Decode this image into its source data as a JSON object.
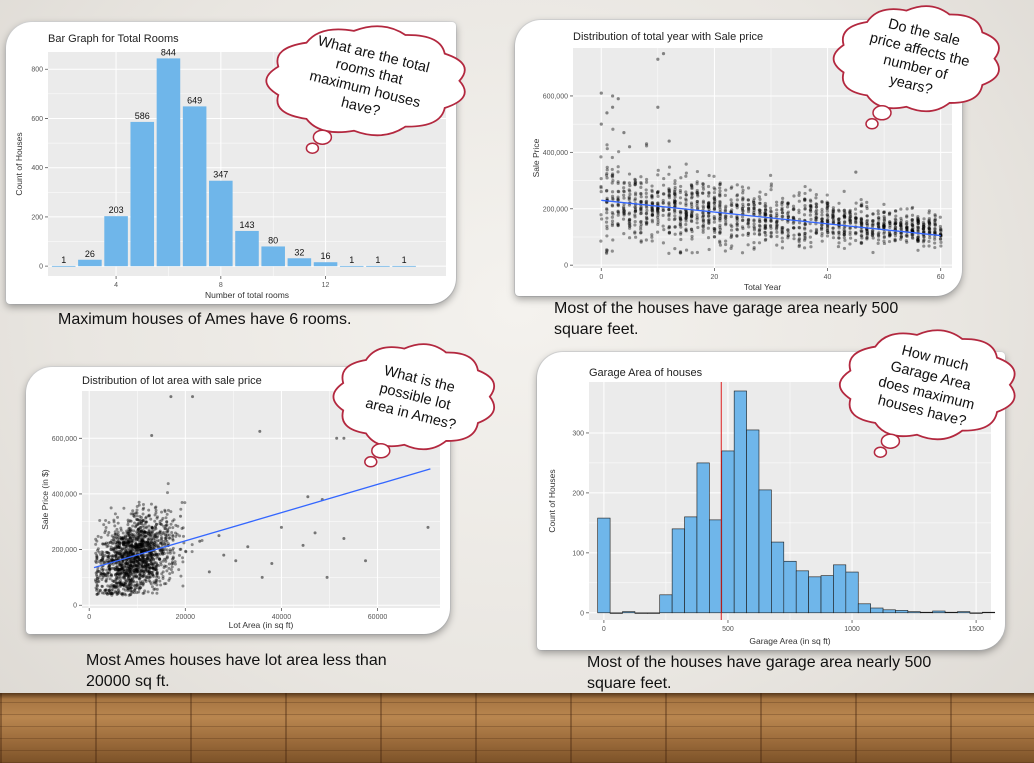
{
  "colors": {
    "bar_fill": "#6fb6ea",
    "bar_stroke": "#1a1a1a",
    "panel_bg": "#ebebeb",
    "grid": "#ffffff",
    "fit_line": "#3366ff",
    "mean_line": "#e02020",
    "cloud_border": "#b3283f"
  },
  "captions": {
    "rooms": "Maximum houses of Ames have 6 rooms.",
    "year": "Most of the houses have garage area nearly 500 square feet.",
    "lot": "Most Ames houses have lot area less than 20000 sq ft.",
    "garage": "Most of the houses have garage area nearly 500 square feet."
  },
  "clouds": {
    "rooms": [
      "What are the total",
      "rooms that",
      "maximum houses",
      "have?"
    ],
    "year": [
      "Do the sale",
      "price affects the",
      "number of",
      "years?"
    ],
    "lot": [
      "What is the",
      "possible lot",
      "area in Ames?"
    ],
    "garage": [
      "How much",
      "Garage Area",
      "does maximum",
      "houses have?"
    ]
  },
  "chart_data": [
    {
      "id": "rooms",
      "type": "bar",
      "title": "Bar Graph for Total Rooms",
      "xlabel": "Number of total rooms",
      "ylabel": "Count of Houses",
      "x": [
        2,
        3,
        4,
        5,
        6,
        7,
        8,
        9,
        10,
        11,
        12,
        13,
        14,
        15
      ],
      "values": [
        1,
        26,
        203,
        586,
        844,
        649,
        347,
        143,
        80,
        32,
        16,
        1,
        1,
        1
      ],
      "xlim": [
        1.4,
        16.6
      ],
      "ylim": [
        -40,
        870
      ],
      "xticks": [
        4,
        8,
        12
      ],
      "xtick_labels": [
        "4",
        "8",
        "12"
      ],
      "yticks": [
        0,
        200,
        400,
        600,
        800
      ],
      "ytick_labels": [
        "0",
        "200",
        "400",
        "600",
        "800"
      ]
    },
    {
      "id": "year",
      "type": "scatter",
      "title": "Distribution of total year with Sale price",
      "xlabel": "Total Year",
      "ylabel": "Sale Price",
      "xlim": [
        -5,
        62
      ],
      "ylim": [
        -10000,
        770000
      ],
      "xticks": [
        0,
        20,
        40,
        60
      ],
      "xtick_labels": [
        "0",
        "20",
        "40",
        "60"
      ],
      "yticks": [
        0,
        200000,
        400000,
        600000
      ],
      "ytick_labels": [
        "0",
        "200,000",
        "400,000",
        "600,000"
      ],
      "trend_line": {
        "x": [
          0,
          60
        ],
        "y": [
          230000,
          105000
        ]
      },
      "point_profile": {
        "x_range": [
          0,
          60
        ],
        "center_y": [
          225000,
          120000
        ],
        "spread": [
          70000,
          25000
        ],
        "count": 1400
      },
      "outliers": [
        [
          11,
          750000
        ],
        [
          10,
          730000
        ],
        [
          0,
          610000
        ],
        [
          3,
          590000
        ],
        [
          2,
          560000
        ],
        [
          1,
          540000
        ],
        [
          0,
          500000
        ],
        [
          10,
          560000
        ],
        [
          12,
          440000
        ],
        [
          5,
          420000
        ],
        [
          8,
          430000
        ],
        [
          45,
          330000
        ],
        [
          2,
          600000
        ],
        [
          4,
          470000
        ]
      ]
    },
    {
      "id": "lot",
      "type": "scatter",
      "title": "Distribution of lot area with sale price",
      "xlabel": "Lot Area (in sq ft)",
      "ylabel": "Sale Price (in $)",
      "xlim": [
        -1500,
        73000
      ],
      "ylim": [
        -10000,
        770000
      ],
      "xticks": [
        0,
        20000,
        40000,
        60000
      ],
      "xtick_labels": [
        "0",
        "20000",
        "40000",
        "60000"
      ],
      "yticks": [
        0,
        200000,
        400000,
        600000
      ],
      "ytick_labels": [
        "0",
        "200,000",
        "400,000",
        "600,000"
      ],
      "trend_line": {
        "x": [
          1000,
          71000
        ],
        "y": [
          135000,
          490000
        ]
      },
      "point_profile": {
        "x_center": 9500,
        "x_spread": 4000,
        "y_center": 175000,
        "y_spread": 70000,
        "count": 1500
      },
      "outliers": [
        [
          17000,
          750000
        ],
        [
          21500,
          750000
        ],
        [
          13000,
          610000
        ],
        [
          35500,
          625000
        ],
        [
          51500,
          600000
        ],
        [
          53000,
          600000
        ],
        [
          70500,
          280000
        ],
        [
          57500,
          160000
        ],
        [
          44500,
          215000
        ],
        [
          47000,
          260000
        ],
        [
          40000,
          280000
        ],
        [
          48500,
          380000
        ],
        [
          45500,
          390000
        ],
        [
          23000,
          230000
        ],
        [
          28000,
          180000
        ],
        [
          30500,
          160000
        ],
        [
          19000,
          320000
        ],
        [
          25000,
          120000
        ],
        [
          33000,
          210000
        ],
        [
          38000,
          150000
        ],
        [
          27000,
          250000
        ],
        [
          53000,
          240000
        ],
        [
          49500,
          100000
        ],
        [
          36000,
          100000
        ]
      ]
    },
    {
      "id": "garage",
      "type": "bar",
      "title": "Garage Area of houses",
      "xlabel": "Garage Area (in sq ft)",
      "ylabel": "Count of Houses",
      "bin_start": -25,
      "bin_width": 50,
      "values": [
        158,
        0,
        2,
        0,
        0,
        30,
        140,
        160,
        250,
        155,
        270,
        370,
        305,
        205,
        118,
        86,
        70,
        60,
        62,
        80,
        68,
        15,
        8,
        5,
        4,
        2,
        1,
        3,
        1,
        2,
        0,
        1
      ],
      "mean_line": 473,
      "xlim": [
        -60,
        1560
      ],
      "ylim": [
        -12,
        385
      ],
      "xticks": [
        0,
        500,
        1000,
        1500
      ],
      "xtick_labels": [
        "0",
        "500",
        "1000",
        "1500"
      ],
      "yticks": [
        0,
        100,
        200,
        300
      ],
      "ytick_labels": [
        "0",
        "100",
        "200",
        "300"
      ]
    }
  ]
}
